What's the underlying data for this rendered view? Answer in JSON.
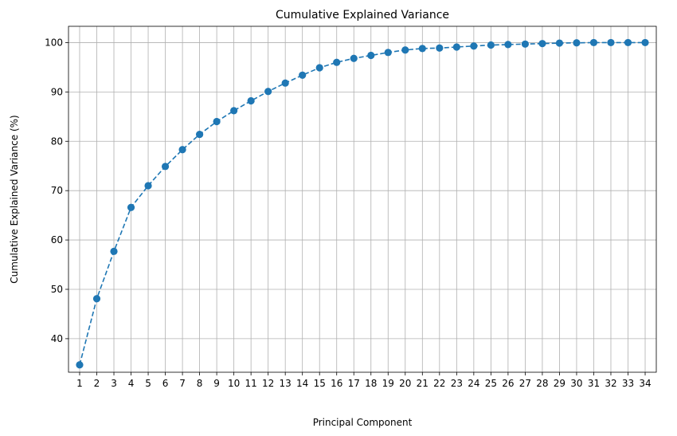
{
  "chart_data": {
    "type": "line",
    "title": "Cumulative Explained Variance",
    "xlabel": "Principal Component",
    "ylabel": "Cumulative Explained Variance (%)",
    "x": [
      1,
      2,
      3,
      4,
      5,
      6,
      7,
      8,
      9,
      10,
      11,
      12,
      13,
      14,
      15,
      16,
      17,
      18,
      19,
      20,
      21,
      22,
      23,
      24,
      25,
      26,
      27,
      28,
      29,
      30,
      31,
      32,
      33,
      34
    ],
    "x_tick_labels": [
      "1",
      "2",
      "3",
      "4",
      "5",
      "6",
      "7",
      "8",
      "9",
      "10",
      "11",
      "12",
      "13",
      "14",
      "15",
      "16",
      "17",
      "18",
      "19",
      "20",
      "21",
      "22",
      "23",
      "24",
      "25",
      "26",
      "27",
      "28",
      "29",
      "30",
      "31",
      "32",
      "33",
      "34"
    ],
    "series": [
      {
        "values": [
          34.7,
          48.1,
          57.7,
          66.6,
          71.0,
          74.9,
          78.3,
          81.4,
          84.0,
          86.2,
          88.2,
          90.1,
          91.8,
          93.4,
          94.9,
          96.0,
          96.8,
          97.4,
          98.0,
          98.5,
          98.8,
          98.9,
          99.1,
          99.3,
          99.5,
          99.6,
          99.7,
          99.8,
          99.9,
          99.95,
          100.0,
          100.0,
          100.0,
          100.0
        ],
        "color": "#1f77b4",
        "linestyle": "dashed",
        "marker": "circle"
      }
    ],
    "ylim": [
      33.2,
      103.3
    ],
    "y_ticks": [
      40,
      50,
      60,
      70,
      80,
      90,
      100
    ],
    "xlim": [
      0.35,
      34.65
    ],
    "grid": true,
    "legend": "none"
  }
}
